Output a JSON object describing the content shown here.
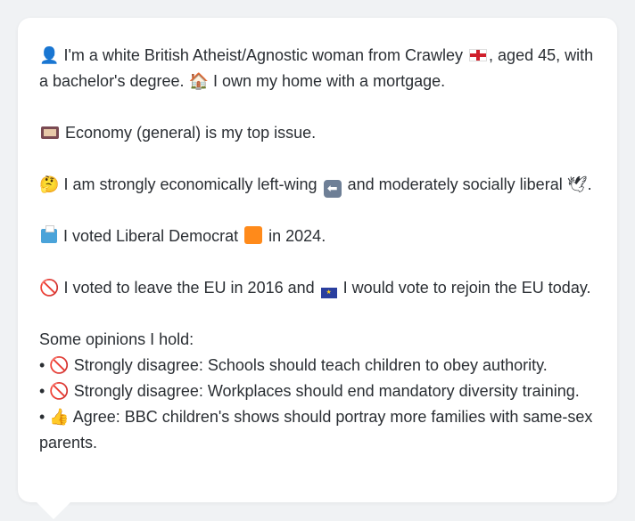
{
  "profile": {
    "intro_a": "I'm a white British Atheist/Agnostic woman from Crawley",
    "intro_b": ", aged 45, with a bachelor's degree.",
    "home": "I own my home with a mortgage.",
    "top_issue": "Economy (general) is my top issue.",
    "ideology_a": "I am strongly economically left-wing",
    "ideology_b": "and moderately socially liberal",
    "ideology_end": ".",
    "vote_a": "I voted Liberal Democrat",
    "vote_b": "in 2024.",
    "brexit_a": "I voted to leave the EU in 2016 and",
    "brexit_b": "I would vote to rejoin the EU today.",
    "opinions_header": "Some opinions I hold:",
    "opinions": [
      {
        "bullet": "•",
        "text": "Strongly disagree: Schools should teach children to obey authority."
      },
      {
        "bullet": "•",
        "text": "Strongly disagree: Workplaces should end mandatory diversity training."
      },
      {
        "bullet": "•",
        "text": "Agree: BBC children's shows should portray more families with same-sex parents."
      }
    ]
  },
  "icons": {
    "person": "👤",
    "flag_england": "flag-england-icon",
    "house": "🏠",
    "thinking": "🤔",
    "dove": "🕊",
    "no_entry": "🚫",
    "thumbs_up": "👍",
    "arrow_left": "⬅"
  },
  "colors": {
    "card_bg": "#ffffff",
    "page_bg": "#f0f2f4",
    "text": "#2a2e33",
    "liberal_democrat": "#ff8a1a"
  }
}
